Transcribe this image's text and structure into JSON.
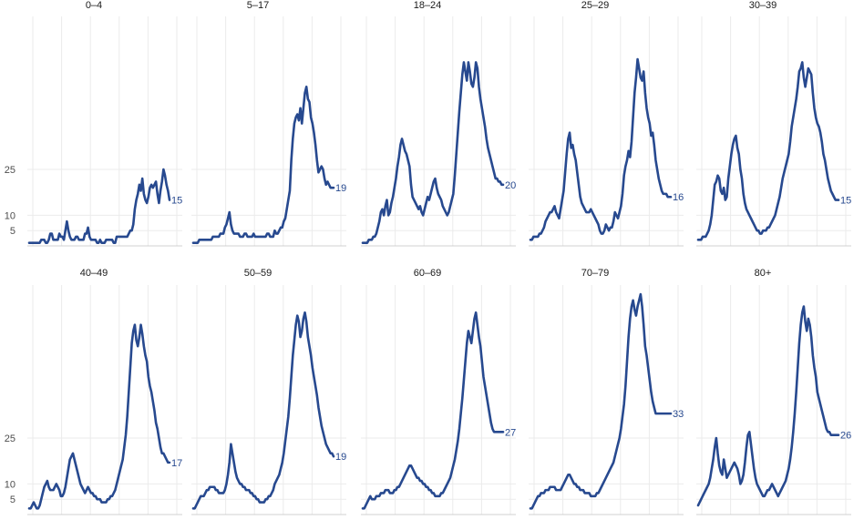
{
  "chart_data": {
    "type": "line",
    "facets": [
      "0–4",
      "5–17",
      "18–24",
      "25–29",
      "30–39",
      "40–49",
      "50–59",
      "60–69",
      "70–79",
      "80+"
    ],
    "yticks": [
      5,
      10,
      25
    ],
    "ytick_labels": [
      "5",
      "10",
      "25"
    ],
    "ylim": [
      0,
      75
    ],
    "grid": true,
    "x_gridlines_per_panel": 6,
    "legend": "none",
    "series_color": "#27498f",
    "series": [
      {
        "facet": "0–4",
        "values": [
          1,
          1,
          1,
          1,
          1,
          1,
          1,
          1,
          2,
          2,
          2,
          1,
          1,
          2,
          4,
          4,
          2,
          2,
          2,
          2,
          4,
          3,
          3,
          2,
          5,
          8,
          5,
          3,
          2,
          2,
          2,
          3,
          3,
          2,
          2,
          2,
          2,
          4,
          4,
          6,
          3,
          2,
          2,
          2,
          2,
          1,
          1,
          2,
          1,
          1,
          1,
          2,
          2,
          2,
          2,
          2,
          1,
          1,
          3,
          3,
          3,
          3,
          3,
          3,
          3,
          3,
          4,
          5,
          5,
          7,
          12,
          15,
          17,
          20,
          18,
          22,
          17,
          15,
          14,
          16,
          19,
          20,
          19,
          20,
          21,
          17,
          14,
          18,
          21,
          25,
          23,
          20,
          18,
          15
        ],
        "end_label": "15"
      },
      {
        "facet": "5–17",
        "values": [
          1,
          1,
          1,
          1,
          2,
          2,
          2,
          2,
          2,
          2,
          2,
          2,
          2,
          3,
          3,
          3,
          3,
          3,
          4,
          4,
          4,
          6,
          7,
          9,
          11,
          7,
          5,
          4,
          4,
          4,
          4,
          3,
          3,
          3,
          4,
          4,
          3,
          3,
          3,
          3,
          4,
          3,
          3,
          3,
          3,
          3,
          3,
          3,
          3,
          4,
          4,
          3,
          3,
          3,
          5,
          4,
          4,
          5,
          6,
          6,
          8,
          9,
          12,
          15,
          18,
          28,
          35,
          40,
          42,
          43,
          41,
          45,
          40,
          45,
          50,
          52,
          48,
          47,
          42,
          40,
          37,
          33,
          28,
          24,
          25,
          26,
          25,
          22,
          20,
          21,
          20,
          19,
          19,
          19
        ],
        "end_label": "19"
      },
      {
        "facet": "18–24",
        "values": [
          1,
          1,
          1,
          1,
          2,
          2,
          2,
          3,
          3,
          4,
          6,
          8,
          11,
          12,
          10,
          13,
          15,
          10,
          11,
          14,
          16,
          19,
          22,
          26,
          29,
          33,
          35,
          33,
          31,
          30,
          28,
          26,
          20,
          16,
          15,
          14,
          13,
          12,
          13,
          11,
          10,
          12,
          14,
          16,
          15,
          17,
          19,
          21,
          22,
          19,
          17,
          16,
          15,
          13,
          12,
          11,
          10,
          11,
          13,
          15,
          17,
          23,
          30,
          37,
          44,
          50,
          56,
          60,
          57,
          54,
          60,
          57,
          53,
          52,
          55,
          60,
          58,
          52,
          48,
          45,
          42,
          39,
          35,
          32,
          30,
          28,
          26,
          24,
          22,
          22,
          21,
          21,
          20,
          20
        ],
        "end_label": "20"
      },
      {
        "facet": "25–29",
        "values": [
          2,
          2,
          3,
          3,
          3,
          3,
          4,
          4,
          5,
          6,
          8,
          9,
          10,
          11,
          11,
          12,
          13,
          11,
          10,
          9,
          12,
          15,
          18,
          24,
          30,
          35,
          37,
          32,
          33,
          30,
          28,
          24,
          20,
          16,
          14,
          13,
          12,
          11,
          11,
          11,
          12,
          11,
          10,
          9,
          8,
          7,
          5,
          4,
          4,
          5,
          7,
          6,
          5,
          6,
          6,
          8,
          11,
          10,
          9,
          11,
          13,
          17,
          23,
          26,
          28,
          31,
          29,
          34,
          42,
          50,
          55,
          61,
          58,
          55,
          54,
          57,
          50,
          45,
          42,
          40,
          36,
          37,
          33,
          28,
          25,
          22,
          20,
          18,
          17,
          17,
          17,
          16,
          16,
          16
        ],
        "end_label": "16"
      },
      {
        "facet": "30–39",
        "values": [
          2,
          2,
          2,
          3,
          3,
          3,
          4,
          5,
          7,
          10,
          15,
          20,
          21,
          23,
          22,
          18,
          17,
          19,
          15,
          16,
          22,
          26,
          30,
          33,
          35,
          36,
          32,
          30,
          25,
          22,
          17,
          14,
          12,
          11,
          10,
          9,
          8,
          7,
          6,
          5,
          5,
          4,
          4,
          5,
          5,
          5,
          6,
          6,
          7,
          8,
          9,
          10,
          12,
          14,
          16,
          19,
          22,
          24,
          26,
          28,
          30,
          34,
          39,
          42,
          45,
          48,
          52,
          57,
          58,
          60,
          55,
          52,
          55,
          58,
          57,
          56,
          50,
          45,
          42,
          40,
          39,
          37,
          34,
          30,
          28,
          25,
          22,
          20,
          18,
          17,
          16,
          15,
          15,
          15
        ],
        "end_label": "15"
      },
      {
        "facet": "40–49",
        "values": [
          2,
          2,
          3,
          4,
          3,
          2,
          2,
          3,
          5,
          7,
          9,
          10,
          11,
          9,
          8,
          8,
          8,
          9,
          10,
          9,
          8,
          6,
          6,
          7,
          9,
          12,
          15,
          18,
          19,
          20,
          18,
          16,
          14,
          12,
          10,
          9,
          8,
          7,
          8,
          9,
          8,
          7,
          7,
          6,
          6,
          5,
          5,
          5,
          4,
          4,
          4,
          4,
          5,
          5,
          6,
          6,
          7,
          8,
          10,
          12,
          14,
          16,
          18,
          22,
          26,
          32,
          40,
          48,
          56,
          60,
          62,
          57,
          55,
          58,
          62,
          59,
          55,
          52,
          50,
          45,
          42,
          40,
          37,
          34,
          30,
          28,
          25,
          22,
          20,
          20,
          19,
          18,
          17,
          17
        ],
        "end_label": "17"
      },
      {
        "facet": "50–59",
        "values": [
          2,
          2,
          3,
          4,
          5,
          6,
          6,
          6,
          7,
          8,
          8,
          9,
          9,
          9,
          9,
          8,
          8,
          7,
          7,
          7,
          7,
          8,
          10,
          13,
          17,
          23,
          20,
          17,
          14,
          12,
          11,
          10,
          10,
          9,
          9,
          8,
          8,
          8,
          7,
          7,
          6,
          6,
          5,
          5,
          4,
          4,
          4,
          4,
          5,
          5,
          6,
          6,
          7,
          8,
          10,
          11,
          12,
          13,
          15,
          17,
          20,
          24,
          28,
          32,
          38,
          45,
          52,
          57,
          62,
          65,
          63,
          58,
          60,
          64,
          66,
          63,
          58,
          55,
          52,
          48,
          45,
          42,
          39,
          35,
          32,
          29,
          27,
          25,
          23,
          22,
          21,
          20,
          20,
          19
        ],
        "end_label": "19"
      },
      {
        "facet": "60–69",
        "values": [
          2,
          2,
          3,
          4,
          5,
          6,
          5,
          5,
          5,
          6,
          6,
          6,
          7,
          7,
          7,
          8,
          8,
          8,
          7,
          7,
          7,
          8,
          8,
          9,
          9,
          10,
          11,
          12,
          13,
          14,
          15,
          16,
          16,
          15,
          14,
          13,
          12,
          12,
          11,
          11,
          10,
          10,
          9,
          9,
          8,
          8,
          7,
          7,
          6,
          6,
          6,
          6,
          7,
          7,
          8,
          9,
          10,
          11,
          12,
          14,
          16,
          18,
          21,
          24,
          28,
          33,
          38,
          44,
          50,
          56,
          60,
          58,
          56,
          60,
          64,
          66,
          62,
          58,
          55,
          50,
          45,
          42,
          39,
          36,
          33,
          30,
          28,
          27,
          27,
          27,
          27,
          27,
          27,
          27
        ],
        "end_label": "27"
      },
      {
        "facet": "70–79",
        "values": [
          2,
          2,
          3,
          4,
          5,
          6,
          6,
          7,
          7,
          7,
          8,
          8,
          8,
          9,
          9,
          9,
          9,
          8,
          8,
          8,
          8,
          9,
          10,
          11,
          12,
          13,
          13,
          12,
          11,
          10,
          10,
          9,
          9,
          8,
          8,
          8,
          7,
          7,
          7,
          7,
          6,
          6,
          6,
          6,
          7,
          7,
          8,
          9,
          10,
          11,
          12,
          13,
          14,
          15,
          16,
          17,
          19,
          21,
          23,
          25,
          28,
          32,
          36,
          42,
          50,
          58,
          64,
          68,
          70,
          67,
          65,
          68,
          70,
          72,
          68,
          62,
          55,
          52,
          48,
          44,
          40,
          37,
          35,
          33,
          33,
          33,
          33,
          33,
          33,
          33,
          33,
          33,
          33,
          33
        ],
        "end_label": "33"
      },
      {
        "facet": "80+",
        "values": [
          3,
          4,
          5,
          6,
          7,
          8,
          9,
          10,
          12,
          15,
          18,
          22,
          25,
          20,
          16,
          14,
          13,
          18,
          15,
          12,
          13,
          14,
          15,
          16,
          17,
          16,
          15,
          13,
          10,
          11,
          13,
          17,
          22,
          26,
          27,
          23,
          19,
          15,
          12,
          10,
          9,
          8,
          7,
          6,
          6,
          7,
          8,
          8,
          9,
          10,
          9,
          8,
          7,
          6,
          7,
          8,
          9,
          10,
          11,
          13,
          15,
          18,
          22,
          27,
          33,
          40,
          48,
          56,
          62,
          66,
          68,
          63,
          60,
          64,
          62,
          58,
          52,
          48,
          45,
          40,
          38,
          36,
          34,
          32,
          30,
          28,
          27,
          27,
          26,
          26,
          26,
          26,
          26,
          26
        ],
        "end_label": "26"
      }
    ]
  }
}
